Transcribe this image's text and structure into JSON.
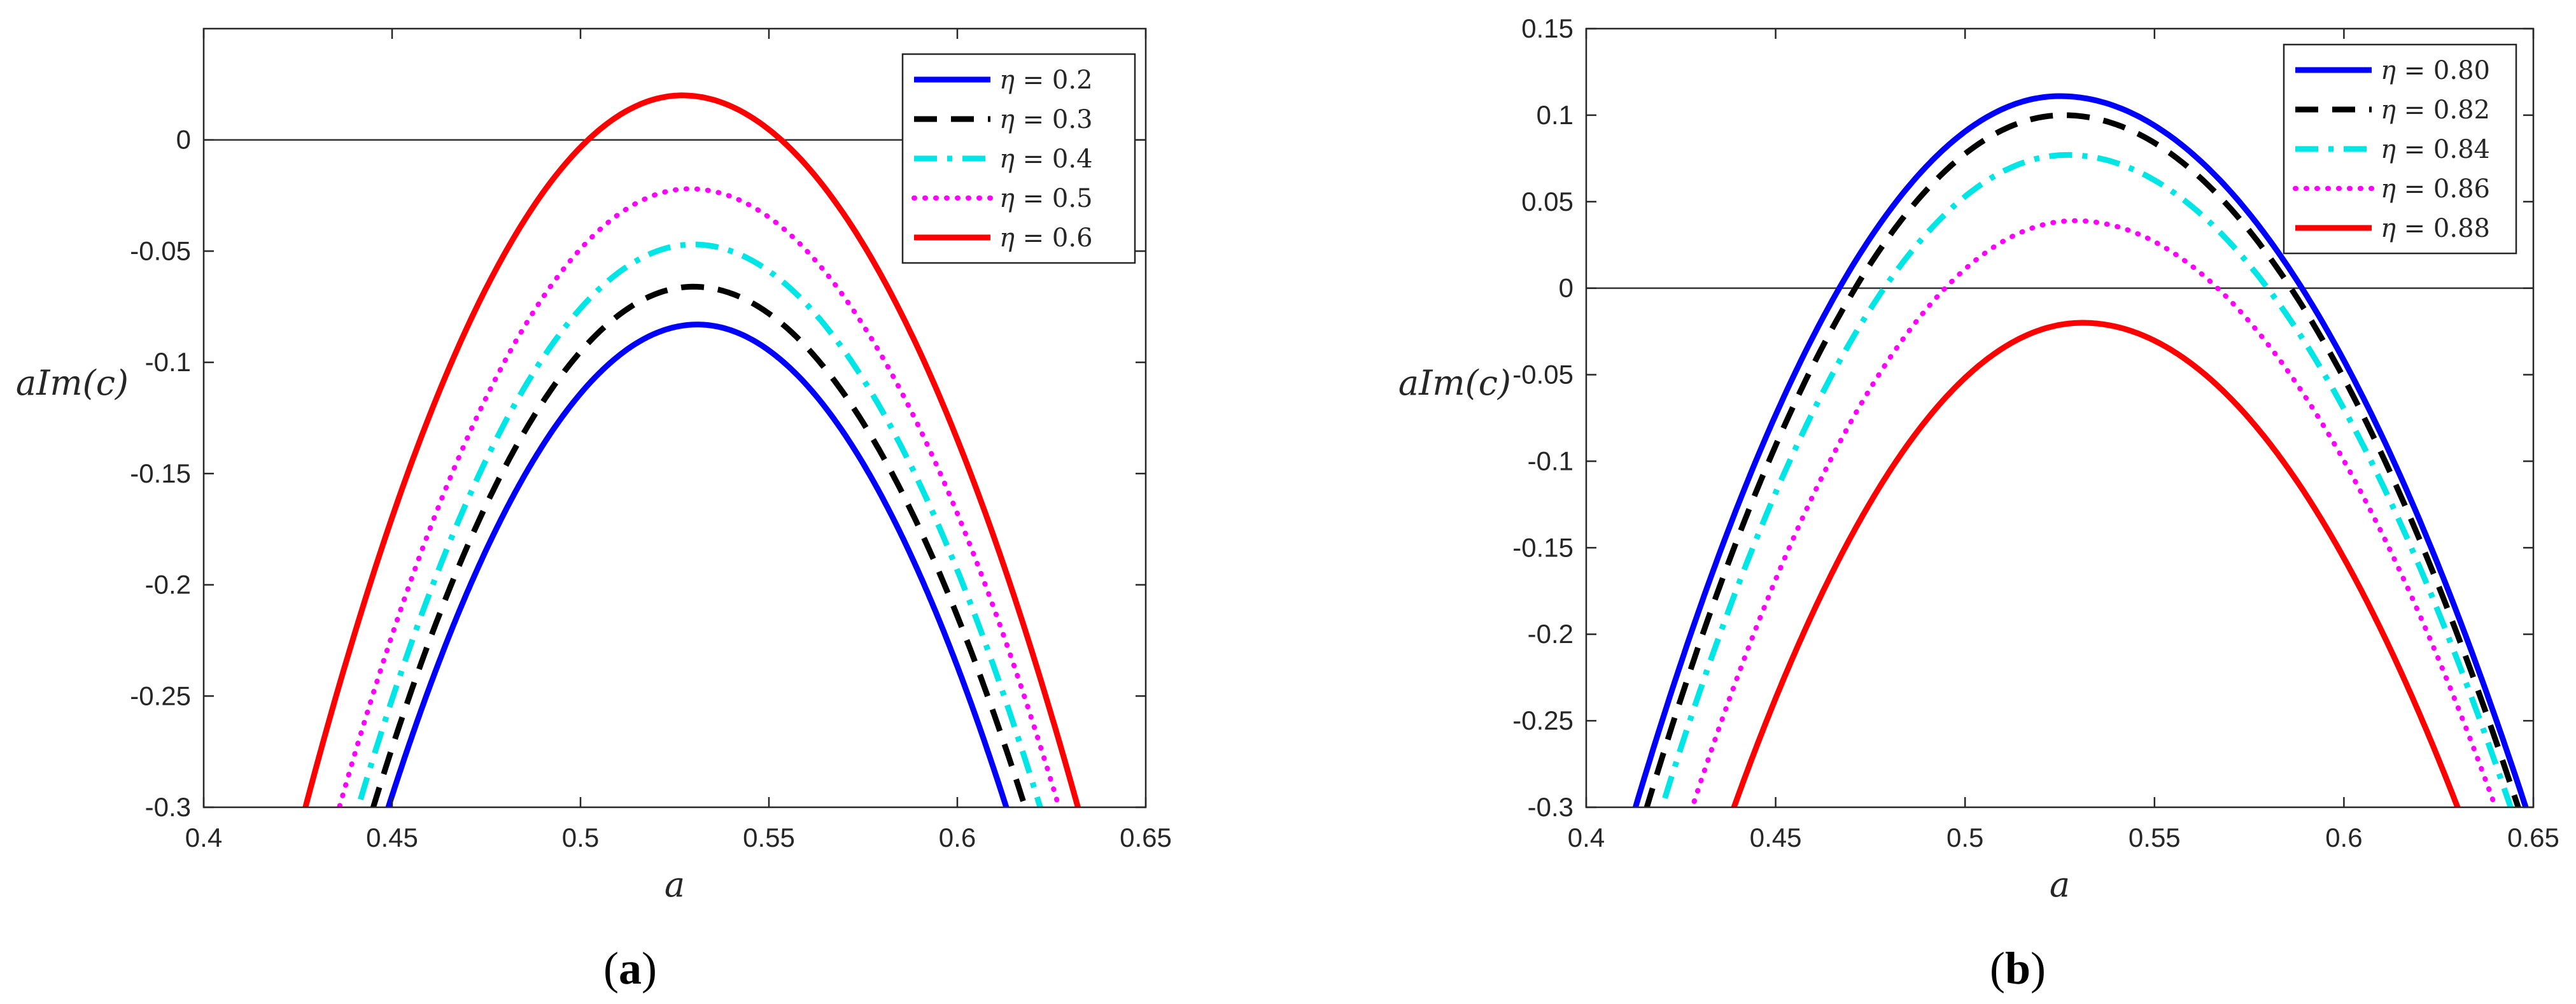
{
  "chart_data": [
    {
      "type": "line",
      "panel": "a",
      "caption_open": "(",
      "caption_letter": "a",
      "caption_close": ")",
      "xlabel": "a",
      "ylabel": "aIm(c)",
      "xlim": [
        0.4,
        0.65
      ],
      "ylim": [
        -0.3,
        0.05
      ],
      "xticks": [
        0.4,
        0.45,
        0.5,
        0.55,
        0.6,
        0.65
      ],
      "xtick_labels": [
        "0.4",
        "0.45",
        "0.5",
        "0.55",
        "0.6",
        "0.65"
      ],
      "yticks": [
        0,
        -0.05,
        -0.1,
        -0.15,
        -0.2,
        -0.25,
        -0.3
      ],
      "ytick_labels": [
        "0",
        "-0.05",
        "-0.1",
        "-0.15",
        "-0.2",
        "-0.25",
        "-0.3"
      ],
      "zero_line": true,
      "legend_position": "top-right",
      "series": [
        {
          "name": "η = 0.2",
          "legend_value": "0.2",
          "color": "#0000ff",
          "style": "solid",
          "peak_x": 0.531,
          "peak_y": -0.083,
          "x_at_bottom": [
            0.449,
            0.613
          ]
        },
        {
          "name": "η = 0.3",
          "legend_value": "0.3",
          "color": "#000000",
          "style": "dashed",
          "peak_x": 0.53,
          "peak_y": -0.066,
          "x_at_bottom": [
            0.445,
            0.618
          ]
        },
        {
          "name": "η = 0.4",
          "legend_value": "0.4",
          "color": "#00e5e5",
          "style": "dashdot",
          "peak_x": 0.53,
          "peak_y": -0.047,
          "x_at_bottom": [
            0.441,
            0.622
          ]
        },
        {
          "name": "η = 0.5",
          "legend_value": "0.5",
          "color": "#ff00ff",
          "style": "dotted",
          "peak_x": 0.529,
          "peak_y": -0.022,
          "x_at_bottom": [
            0.436,
            0.627
          ]
        },
        {
          "name": "η = 0.6",
          "legend_value": "0.6",
          "color": "#ff0000",
          "style": "solid",
          "peak_x": 0.527,
          "peak_y": 0.02,
          "x_at_bottom": [
            0.427,
            0.632
          ]
        }
      ]
    },
    {
      "type": "line",
      "panel": "b",
      "caption_open": "(",
      "caption_letter": "b",
      "caption_close": ")",
      "xlabel": "a",
      "ylabel": "aIm(c)",
      "xlim": [
        0.4,
        0.65
      ],
      "ylim": [
        -0.3,
        0.15
      ],
      "xticks": [
        0.4,
        0.45,
        0.5,
        0.55,
        0.6,
        0.65
      ],
      "xtick_labels": [
        "0.4",
        "0.45",
        "0.5",
        "0.55",
        "0.6",
        "0.65"
      ],
      "yticks": [
        0.15,
        0.1,
        0.05,
        0,
        -0.05,
        -0.1,
        -0.15,
        -0.2,
        -0.25,
        -0.3
      ],
      "ytick_labels": [
        "0.15",
        "0.1",
        "0.05",
        "0",
        "-0.05",
        "-0.1",
        "-0.15",
        "-0.2",
        "-0.25",
        "-0.3"
      ],
      "zero_line": true,
      "legend_position": "top-right",
      "series": [
        {
          "name": "η = 0.80",
          "legend_value": "0.80",
          "color": "#0000ff",
          "style": "solid",
          "peak_x": 0.525,
          "peak_y": 0.111,
          "x_at_bottom": [
            0.413,
            0.648
          ]
        },
        {
          "name": "η = 0.82",
          "legend_value": "0.82",
          "color": "#000000",
          "style": "dashed",
          "peak_x": 0.526,
          "peak_y": 0.1,
          "x_at_bottom": [
            0.416,
            0.646
          ]
        },
        {
          "name": "η = 0.84",
          "legend_value": "0.84",
          "color": "#00e5e5",
          "style": "dashdot",
          "peak_x": 0.527,
          "peak_y": 0.077,
          "x_at_bottom": [
            0.42,
            0.644
          ]
        },
        {
          "name": "η = 0.86",
          "legend_value": "0.86",
          "color": "#ff00ff",
          "style": "dotted",
          "peak_x": 0.529,
          "peak_y": 0.039,
          "x_at_bottom": [
            0.428,
            0.64
          ]
        },
        {
          "name": "η = 0.88",
          "legend_value": "0.88",
          "color": "#ff0000",
          "style": "solid",
          "peak_x": 0.531,
          "peak_y": -0.02,
          "x_at_bottom": [
            0.439,
            0.63
          ]
        }
      ]
    }
  ]
}
